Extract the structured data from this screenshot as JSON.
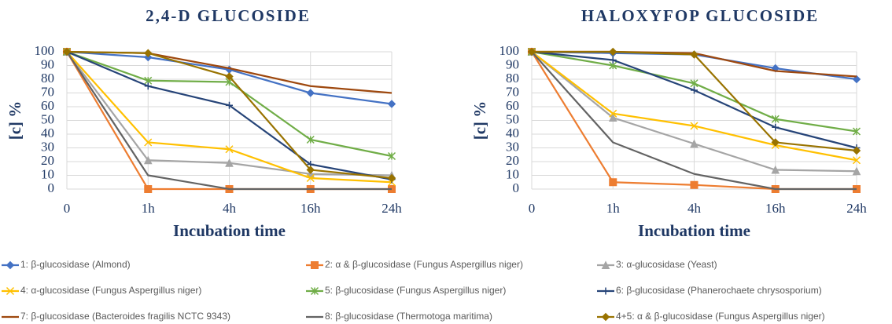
{
  "chart_data": [
    {
      "type": "line",
      "title": "2,4-D GLUCOSIDE",
      "xlabel": "Incubation time",
      "ylabel": "[c] %",
      "categories": [
        "0",
        "1h",
        "4h",
        "16h",
        "24h"
      ],
      "ylim": [
        0,
        100
      ],
      "yticks": [
        0,
        10,
        20,
        30,
        40,
        50,
        60,
        70,
        80,
        90,
        100
      ],
      "grid": true,
      "series": [
        {
          "name": "1: β-glucosidase (Almond)",
          "color": "#4472c4",
          "marker": "diamond",
          "values": [
            100,
            96,
            87,
            70,
            62
          ]
        },
        {
          "name": "2: α & β-glucosidase  (Fungus Aspergillus niger)",
          "color": "#ed7d31",
          "marker": "square",
          "values": [
            100,
            0,
            0,
            0,
            0
          ]
        },
        {
          "name": "3: α-glucosidase (Yeast)",
          "color": "#a5a5a5",
          "marker": "triangle",
          "values": [
            100,
            21,
            19,
            11,
            10
          ]
        },
        {
          "name": "4: α-glucosidase  (Fungus Aspergillus niger)",
          "color": "#ffc000",
          "marker": "x",
          "values": [
            100,
            34,
            29,
            8,
            5
          ]
        },
        {
          "name": "5: β-glucosidase  (Fungus Aspergillus niger)",
          "color": "#70ad47",
          "marker": "star",
          "values": [
            100,
            79,
            78,
            36,
            24
          ]
        },
        {
          "name": "6: β-glucosidase (Phanerochaete chrysosporium)",
          "color": "#264478",
          "marker": "plus",
          "values": [
            100,
            75,
            61,
            18,
            7
          ]
        },
        {
          "name": "7: β-glucosidase (Bacteroides fragilis NCTC 9343)",
          "color": "#9e480e",
          "marker": "none",
          "values": [
            100,
            99,
            88,
            75,
            70
          ]
        },
        {
          "name": "8: β-glucosidase (Thermotoga maritima)",
          "color": "#636363",
          "marker": "none",
          "values": [
            100,
            10,
            0,
            0,
            0
          ]
        },
        {
          "name": "4+5: α & β-glucosidase (Fungus Aspergillus niger)",
          "color": "#997300",
          "marker": "diamond",
          "values": [
            100,
            99,
            82,
            14,
            8
          ]
        }
      ]
    },
    {
      "type": "line",
      "title": "HALOXYFOP GLUCOSIDE",
      "xlabel": "Incubation time",
      "ylabel": "[c] %",
      "categories": [
        "0",
        "1h",
        "4h",
        "16h",
        "24h"
      ],
      "ylim": [
        0,
        100
      ],
      "yticks": [
        0,
        10,
        20,
        30,
        40,
        50,
        60,
        70,
        80,
        90,
        100
      ],
      "grid": true,
      "series": [
        {
          "color": "#4472c4",
          "marker": "diamond",
          "values": [
            100,
            99,
            98,
            88,
            80
          ]
        },
        {
          "color": "#ed7d31",
          "marker": "square",
          "values": [
            100,
            5,
            3,
            0,
            0
          ]
        },
        {
          "color": "#a5a5a5",
          "marker": "triangle",
          "values": [
            100,
            52,
            33,
            14,
            13
          ]
        },
        {
          "color": "#ffc000",
          "marker": "x",
          "values": [
            100,
            55,
            46,
            32,
            21
          ]
        },
        {
          "color": "#70ad47",
          "marker": "star",
          "values": [
            100,
            90,
            77,
            51,
            42
          ]
        },
        {
          "color": "#264478",
          "marker": "plus",
          "values": [
            100,
            94,
            72,
            45,
            30
          ]
        },
        {
          "color": "#9e480e",
          "marker": "none",
          "values": [
            100,
            100,
            99,
            86,
            82
          ]
        },
        {
          "color": "#636363",
          "marker": "none",
          "values": [
            100,
            34,
            11,
            0,
            0
          ]
        },
        {
          "color": "#997300",
          "marker": "diamond",
          "values": [
            100,
            100,
            98,
            34,
            28
          ]
        }
      ]
    }
  ]
}
